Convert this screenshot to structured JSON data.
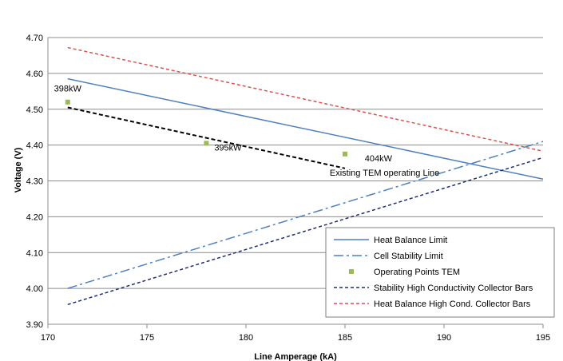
{
  "chart_data": {
    "type": "line",
    "title": "",
    "xlabel": "Line Amperage (kA)",
    "ylabel": "Voltage (V)",
    "xlim": [
      170,
      195
    ],
    "ylim": [
      3.9,
      4.7
    ],
    "x_ticks": [
      "170",
      "175",
      "180",
      "185",
      "190",
      "195"
    ],
    "y_ticks": [
      "3.90",
      "4.00",
      "4.10",
      "4.20",
      "4.30",
      "4.40",
      "4.50",
      "4.60",
      "4.70"
    ],
    "grid": "horizontal",
    "legend_position": "bottom-right",
    "series": [
      {
        "name": "Heat Balance Limit",
        "style": "solid",
        "color": "#4f81bd",
        "x": [
          171,
          195
        ],
        "y": [
          4.585,
          4.305
        ]
      },
      {
        "name": "Cell Stability Limit",
        "style": "dash-dot",
        "color": "#4f81bd",
        "x": [
          171,
          195
        ],
        "y": [
          4.0,
          4.41
        ]
      },
      {
        "name": "Operating Points TEM",
        "style": "markers",
        "color": "#9bbb59",
        "x": [
          171,
          178,
          185
        ],
        "y": [
          4.52,
          4.405,
          4.375
        ]
      },
      {
        "name": "Stability High Conductivity Collector Bars",
        "style": "dashed",
        "color": "#1f2d6e",
        "x": [
          171,
          195
        ],
        "y": [
          3.955,
          4.365
        ]
      },
      {
        "name": "Heat Balance High Cond. Collector Bars",
        "style": "dashed",
        "color": "#d9534f",
        "x": [
          171,
          195
        ],
        "y": [
          4.672,
          4.383
        ]
      }
    ],
    "trend_line": {
      "style": "dashed",
      "color": "#000000",
      "x": [
        171,
        185
      ],
      "y": [
        4.505,
        4.335
      ]
    },
    "annotations": [
      {
        "text": "398kW",
        "x": 171,
        "y": 4.55
      },
      {
        "text": "395kW",
        "x": 178.4,
        "y": 4.385
      },
      {
        "text": "404kW",
        "x": 186.0,
        "y": 4.355
      },
      {
        "text": "Existing TEM operating Line",
        "x": 187.0,
        "y": 4.315
      }
    ]
  }
}
